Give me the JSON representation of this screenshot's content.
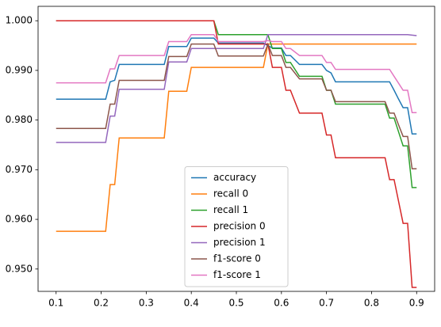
{
  "chart_data": {
    "type": "line",
    "x": [
      0.1,
      0.21,
      0.22,
      0.23,
      0.24,
      0.34,
      0.35,
      0.39,
      0.4,
      0.45,
      0.46,
      0.56,
      0.57,
      0.58,
      0.6,
      0.61,
      0.62,
      0.64,
      0.65,
      0.69,
      0.7,
      0.71,
      0.72,
      0.83,
      0.84,
      0.85,
      0.86,
      0.87,
      0.88,
      0.89,
      0.9
    ],
    "series": [
      {
        "name": "accuracy",
        "color": "#1f77b4",
        "values": [
          0.9842,
          0.9842,
          0.9877,
          0.988,
          0.9912,
          0.9912,
          0.9948,
          0.9948,
          0.9965,
          0.9965,
          0.9955,
          0.9955,
          0.995,
          0.9945,
          0.9945,
          0.993,
          0.993,
          0.9912,
          0.9912,
          0.9912,
          0.99,
          0.9895,
          0.9877,
          0.9877,
          0.9877,
          0.986,
          0.9842,
          0.9825,
          0.9825,
          0.9772,
          0.9772
        ]
      },
      {
        "name": "recall 0",
        "color": "#ff7f0e",
        "values": [
          0.9576,
          0.9576,
          0.967,
          0.967,
          0.9764,
          0.9764,
          0.9858,
          0.9858,
          0.9906,
          0.9906,
          0.9906,
          0.9906,
          0.9953,
          0.9953,
          0.9953,
          0.9953,
          0.9953,
          0.9953,
          0.9953,
          0.9953,
          0.9953,
          0.9953,
          0.9953,
          0.9953,
          0.9953,
          0.9953,
          0.9953,
          0.9953,
          0.9953,
          0.9953,
          0.9953
        ]
      },
      {
        "name": "recall 1",
        "color": "#2ca02c",
        "values": [
          1.0,
          1.0,
          1.0,
          1.0,
          1.0,
          1.0,
          1.0,
          1.0,
          1.0,
          1.0,
          0.9972,
          0.9972,
          0.9972,
          0.9944,
          0.9944,
          0.9916,
          0.9916,
          0.9888,
          0.9888,
          0.9888,
          0.986,
          0.986,
          0.9832,
          0.9832,
          0.9804,
          0.9804,
          0.9776,
          0.9748,
          0.9748,
          0.9664,
          0.9664
        ]
      },
      {
        "name": "precision 0",
        "color": "#d62728",
        "values": [
          1.0,
          1.0,
          1.0,
          1.0,
          1.0,
          1.0,
          1.0,
          1.0,
          1.0,
          1.0,
          0.9953,
          0.9953,
          0.9953,
          0.9906,
          0.9906,
          0.986,
          0.986,
          0.9814,
          0.9814,
          0.9814,
          0.977,
          0.977,
          0.9724,
          0.9724,
          0.968,
          0.968,
          0.9636,
          0.9592,
          0.9592,
          0.9463,
          0.9463
        ]
      },
      {
        "name": "precision 1",
        "color": "#9467bd",
        "values": [
          0.9755,
          0.9755,
          0.9808,
          0.9808,
          0.9862,
          0.9862,
          0.9917,
          0.9917,
          0.9944,
          0.9944,
          0.9944,
          0.9944,
          0.9972,
          0.9972,
          0.9972,
          0.9972,
          0.9972,
          0.9972,
          0.9972,
          0.9972,
          0.9972,
          0.9972,
          0.9972,
          0.9972,
          0.9972,
          0.9972,
          0.9972,
          0.9972,
          0.9972,
          0.9971,
          0.997
        ]
      },
      {
        "name": "f1-score 0",
        "color": "#8c564b",
        "values": [
          0.9783,
          0.9783,
          0.9832,
          0.9832,
          0.988,
          0.988,
          0.9928,
          0.9928,
          0.9953,
          0.9953,
          0.9929,
          0.9929,
          0.9953,
          0.993,
          0.993,
          0.9906,
          0.9906,
          0.9883,
          0.9883,
          0.9883,
          0.986,
          0.986,
          0.9837,
          0.9837,
          0.9814,
          0.9814,
          0.979,
          0.9767,
          0.9767,
          0.9702,
          0.9702
        ]
      },
      {
        "name": "f1-score 1",
        "color": "#e377c2",
        "values": [
          0.9875,
          0.9875,
          0.9903,
          0.9903,
          0.993,
          0.993,
          0.9958,
          0.9958,
          0.9972,
          0.9972,
          0.9958,
          0.9958,
          0.996,
          0.9958,
          0.9958,
          0.9944,
          0.9944,
          0.993,
          0.993,
          0.993,
          0.9916,
          0.9916,
          0.9902,
          0.9902,
          0.9902,
          0.9888,
          0.9874,
          0.986,
          0.986,
          0.9815,
          0.9815
        ]
      }
    ],
    "xlim": [
      0.06,
      0.94
    ],
    "xticks": [
      0.1,
      0.2,
      0.3,
      0.4,
      0.5,
      0.6,
      0.7,
      0.8,
      0.9
    ],
    "ylim": [
      0.9455,
      1.0029
    ],
    "yticks": [
      {
        "value": 0.95,
        "label": "0.950"
      },
      {
        "value": 0.96,
        "label": "0.960"
      },
      {
        "value": 0.97,
        "label": "0.970"
      },
      {
        "value": 0.98,
        "label": "0.980"
      },
      {
        "value": 0.99,
        "label": "0.990"
      },
      {
        "value": 1.0,
        "label": "1.000"
      }
    ],
    "legend": "lower center"
  }
}
